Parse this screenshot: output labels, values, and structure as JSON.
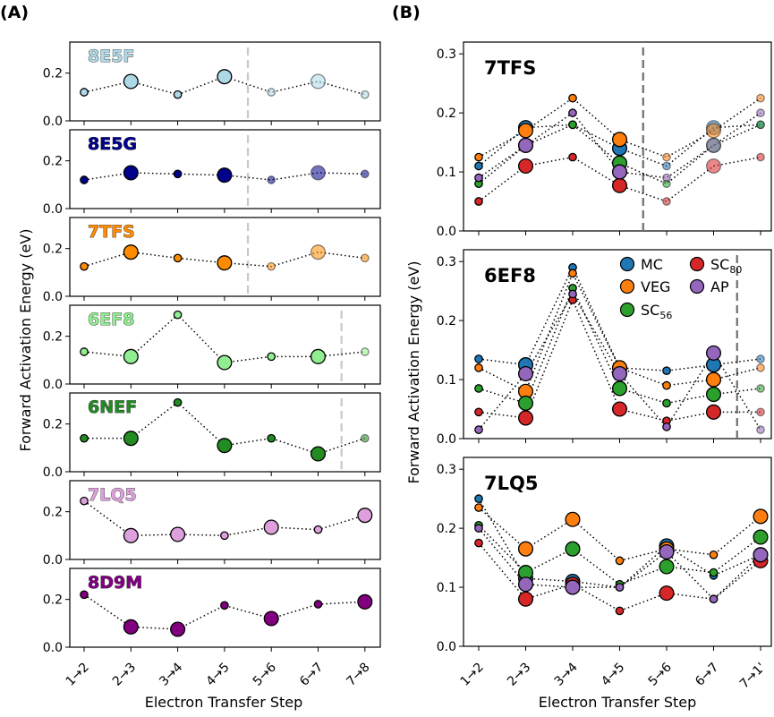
{
  "panel_labels": {
    "a": "(A)",
    "b": "(B)"
  },
  "x_axis_label": "Electron Transfer Step",
  "y_axis_label": "Forward Activation Energy (eV)",
  "chart_data": [
    {
      "type": "scatter",
      "panel": "A",
      "categories": [
        "1→2",
        "2→3",
        "3→4",
        "4→5",
        "5→6",
        "6→7",
        "7→8"
      ],
      "ylim": [
        0,
        0.33
      ],
      "yticks": [
        "0.0",
        "0.2"
      ],
      "xlabel": "Electron Transfer Step",
      "ylabel": "Forward Activation Energy (eV)",
      "series": [
        {
          "name": "8E5F",
          "color": "#add8e6",
          "values": [
            0.12,
            0.165,
            0.11,
            0.185,
            0.12,
            0.165,
            0.11
          ],
          "sizes": [
            8,
            15,
            8,
            15,
            8,
            15,
            8
          ],
          "divider_after": 4
        },
        {
          "name": "8E5G",
          "color": "#00008b",
          "values": [
            0.12,
            0.15,
            0.145,
            0.14,
            0.12,
            0.15,
            0.145
          ],
          "sizes": [
            8,
            15,
            8,
            15,
            8,
            15,
            8
          ],
          "divider_after": 4
        },
        {
          "name": "7TFS",
          "color": "#ff8c00",
          "values": [
            0.125,
            0.185,
            0.16,
            0.14,
            0.125,
            0.185,
            0.16
          ],
          "sizes": [
            8,
            15,
            8,
            15,
            8,
            15,
            8
          ],
          "divider_after": 4
        },
        {
          "name": "6EF8",
          "color": "#90ee90",
          "values": [
            0.135,
            0.115,
            0.29,
            0.09,
            0.115,
            0.115,
            0.135
          ],
          "sizes": [
            8,
            15,
            8,
            15,
            8,
            15,
            8
          ],
          "divider_after": 6
        },
        {
          "name": "6NEF",
          "color": "#228b22",
          "values": [
            0.14,
            0.14,
            0.29,
            0.11,
            0.14,
            0.075,
            0.14
          ],
          "sizes": [
            8,
            15,
            8,
            15,
            8,
            15,
            8
          ],
          "divider_after": 6
        },
        {
          "name": "7LQ5",
          "color": "#dda0dd",
          "values": [
            0.245,
            0.1,
            0.105,
            0.1,
            0.135,
            0.125,
            0.185
          ],
          "sizes": [
            8,
            15,
            15,
            8,
            15,
            8,
            15
          ],
          "divider_after": null
        },
        {
          "name": "8D9M",
          "color": "#800080",
          "values": [
            0.22,
            0.085,
            0.075,
            0.175,
            0.12,
            0.18,
            0.19
          ],
          "sizes": [
            8,
            15,
            15,
            8,
            15,
            8,
            15
          ],
          "divider_after": null
        }
      ]
    },
    {
      "type": "scatter",
      "panel": "B",
      "categories": [
        "1→2",
        "2→3",
        "3→4",
        "4→5",
        "5→6",
        "6→7",
        "7→1'"
      ],
      "ylim": [
        0,
        0.32
      ],
      "yticks": [
        "0.0",
        "0.1",
        "0.2",
        "0.3"
      ],
      "xlabel": "Electron Transfer Step",
      "ylabel": "Forward Activation Energy (eV)",
      "legend": {
        "position": "top-right of middle panel",
        "entries": [
          {
            "name": "MC",
            "color": "#1f77b4"
          },
          {
            "name": "VEG",
            "color": "#ff7f0e"
          },
          {
            "name": "SC",
            "sub": "56",
            "color": "#2ca02c"
          },
          {
            "name": "SC",
            "sub": "80",
            "color": "#d62728"
          },
          {
            "name": "AP",
            "color": "#9467bd"
          }
        ]
      },
      "subplots": [
        {
          "name": "7TFS",
          "divider_after": 4,
          "sizes": [
            8,
            15,
            8,
            15,
            8,
            15,
            8
          ],
          "series": [
            {
              "name": "MC",
              "values": [
                0.11,
                0.175,
                0.18,
                0.14,
                0.11,
                0.175,
                0.18
              ]
            },
            {
              "name": "VEG",
              "values": [
                0.125,
                0.17,
                0.225,
                0.155,
                0.125,
                0.17,
                0.225
              ]
            },
            {
              "name": "SC56",
              "values": [
                0.08,
                0.145,
                0.18,
                0.115,
                0.08,
                0.145,
                0.18
              ]
            },
            {
              "name": "SC80",
              "values": [
                0.05,
                0.11,
                0.125,
                0.077,
                0.05,
                0.11,
                0.125
              ]
            },
            {
              "name": "AP",
              "values": [
                0.09,
                0.145,
                0.2,
                0.1,
                0.09,
                0.145,
                0.2
              ]
            }
          ]
        },
        {
          "name": "6EF8",
          "divider_after": 6,
          "sizes": [
            8,
            15,
            8,
            15,
            8,
            15,
            8
          ],
          "series": [
            {
              "name": "MC",
              "values": [
                0.135,
                0.125,
                0.29,
                0.12,
                0.115,
                0.125,
                0.135
              ]
            },
            {
              "name": "VEG",
              "values": [
                0.12,
                0.08,
                0.28,
                0.12,
                0.09,
                0.1,
                0.12
              ]
            },
            {
              "name": "SC56",
              "values": [
                0.085,
                0.06,
                0.255,
                0.085,
                0.06,
                0.075,
                0.085
              ]
            },
            {
              "name": "SC80",
              "values": [
                0.045,
                0.035,
                0.235,
                0.05,
                0.03,
                0.045,
                0.045
              ]
            },
            {
              "name": "AP",
              "values": [
                0.015,
                0.11,
                0.245,
                0.11,
                0.02,
                0.145,
                0.015
              ]
            }
          ]
        },
        {
          "name": "7LQ5",
          "divider_after": null,
          "sizes": [
            8,
            15,
            15,
            8,
            15,
            8,
            15
          ],
          "series": [
            {
              "name": "MC",
              "values": [
                0.25,
                0.115,
                0.11,
                0.1,
                0.17,
                0.12,
                0.155
              ]
            },
            {
              "name": "VEG",
              "values": [
                0.235,
                0.165,
                0.215,
                0.145,
                0.165,
                0.155,
                0.22
              ]
            },
            {
              "name": "SC56",
              "values": [
                0.205,
                0.125,
                0.165,
                0.105,
                0.135,
                0.125,
                0.185
              ]
            },
            {
              "name": "SC80",
              "values": [
                0.175,
                0.08,
                0.105,
                0.06,
                0.09,
                0.08,
                0.145
              ]
            },
            {
              "name": "AP",
              "values": [
                0.2,
                0.105,
                0.1,
                0.1,
                0.16,
                0.08,
                0.155
              ]
            }
          ]
        }
      ]
    }
  ]
}
